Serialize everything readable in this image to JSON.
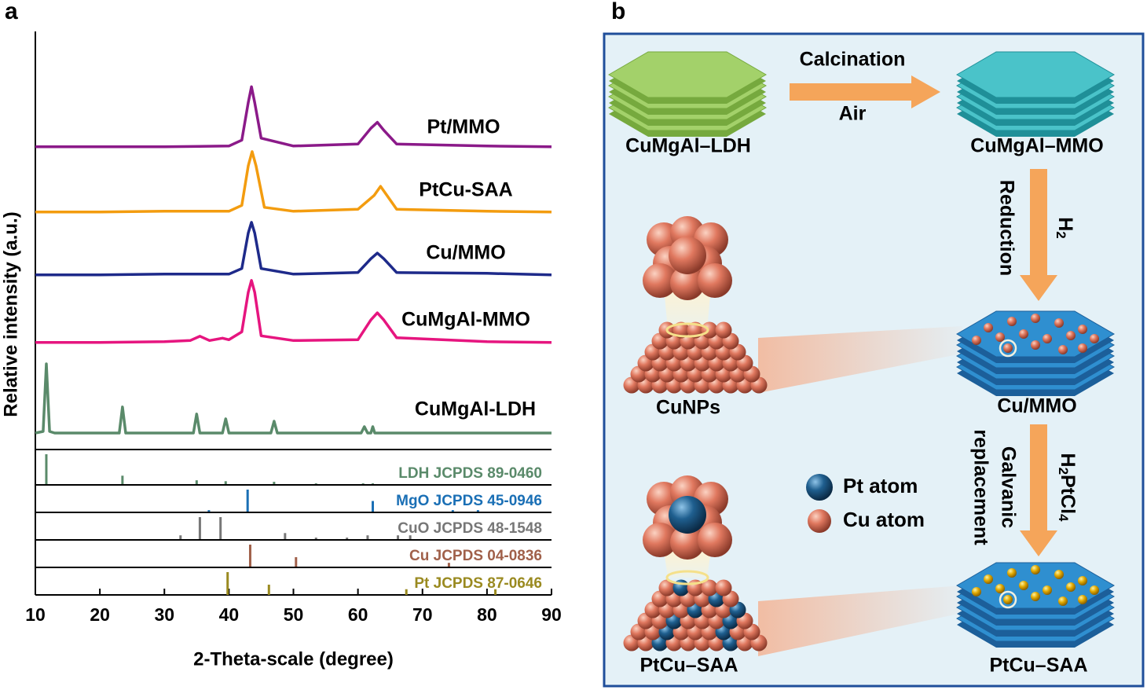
{
  "panel_labels": [
    "a",
    "b"
  ],
  "chart_data": {
    "type": "line",
    "xlabel": "2-Theta-scale (degree)",
    "ylabel": "Relative intensity (a.u.)",
    "xlim": [
      10,
      90
    ],
    "xticks": [
      10,
      20,
      30,
      40,
      50,
      60,
      70,
      80,
      90
    ],
    "ylim": [
      0,
      100
    ],
    "series": [
      {
        "name": "Pt/MMO",
        "color": "#8b1a89",
        "x": [
          10,
          20,
          30,
          40,
          42,
          43,
          43.5,
          44,
          45,
          50,
          60,
          62,
          63,
          64,
          66,
          80,
          90
        ],
        "values": [
          72.8,
          72.8,
          72.8,
          73,
          74.5,
          84,
          88,
          84,
          75,
          73,
          73.5,
          77.5,
          79,
          77,
          73.5,
          73,
          72.8
        ]
      },
      {
        "name": "PtCu-SAA",
        "color": "#f39c0f",
        "x": [
          10,
          20,
          30,
          40,
          42,
          43,
          43.6,
          44.2,
          45.5,
          50,
          60,
          62.5,
          63.5,
          64.5,
          66,
          80,
          90
        ],
        "values": [
          56.3,
          56.3,
          56.5,
          56.5,
          58,
          68,
          71.6,
          68,
          57.5,
          56.5,
          57,
          60.5,
          62.8,
          60.5,
          57,
          56.5,
          56.3
        ]
      },
      {
        "name": "Cu/MMO",
        "color": "#1e2a8a",
        "x": [
          10,
          20,
          30,
          40,
          42,
          43,
          43.5,
          44,
          45,
          50,
          60,
          62,
          63,
          64,
          66,
          80,
          90
        ],
        "values": [
          40.4,
          40.4,
          40.6,
          40.6,
          42,
          51,
          53.7,
          51,
          42,
          40.6,
          41,
          44.5,
          45.9,
          44.5,
          41,
          40.8,
          40.4
        ]
      },
      {
        "name": "CuMgAl-MMO",
        "color": "#e6157f",
        "x": [
          10,
          20,
          30,
          34,
          35.5,
          37,
          39,
          40,
          42,
          43,
          43.5,
          44,
          45,
          50,
          60,
          62,
          63,
          64,
          66,
          80,
          90
        ],
        "values": [
          23.3,
          23.3,
          23.5,
          23.8,
          24.9,
          23.8,
          24.4,
          24,
          26,
          36,
          39,
          36,
          25,
          23.8,
          24,
          29,
          30.8,
          29,
          24.5,
          23.5,
          23.3
        ]
      },
      {
        "name": "CuMgAl-LDH",
        "color": "#5a8a6a",
        "x": [
          10,
          11.2,
          11.7,
          12.2,
          13,
          23,
          23.5,
          24,
          34.5,
          35,
          35.5,
          39,
          39.5,
          40,
          46.5,
          47,
          47.5,
          60.5,
          61,
          61.5,
          62,
          62.3,
          62.6,
          90
        ],
        "values": [
          0.4,
          0.8,
          17.9,
          0.8,
          0.4,
          0.4,
          7,
          0.4,
          0.4,
          5.2,
          0.4,
          0.4,
          4,
          0.4,
          0.4,
          3.4,
          0.4,
          0.4,
          2,
          0.4,
          0.4,
          2,
          0.4,
          0.4
        ]
      }
    ],
    "references": [
      {
        "name": "LDH JCPDS 89-0460",
        "color": "#5a8a6a",
        "positions": [
          11.7,
          23.5,
          35,
          39.5,
          47,
          53.5,
          60.8,
          62.3
        ],
        "intensities": [
          100,
          30,
          15,
          12,
          10,
          5,
          5,
          5
        ]
      },
      {
        "name": "MgO JCPDS 45-0946",
        "color": "#1a6fb5",
        "positions": [
          36.9,
          42.9,
          62.3,
          74.7,
          78.6
        ],
        "intensities": [
          10,
          100,
          50,
          10,
          10
        ]
      },
      {
        "name": "CuO JCPDS 48-1548",
        "color": "#777777",
        "positions": [
          32.5,
          35.5,
          38.7,
          48.7,
          53.5,
          58.3,
          61.5,
          66.2,
          68.1
        ],
        "intensities": [
          20,
          100,
          100,
          30,
          10,
          10,
          20,
          20,
          20
        ]
      },
      {
        "name": "Cu JCPDS 04-0836",
        "color": "#a0604a",
        "positions": [
          43.3,
          50.4,
          74.1
        ],
        "intensities": [
          100,
          45,
          20
        ]
      },
      {
        "name": "Pt JCPDS 87-0646",
        "color": "#9a8a20",
        "positions": [
          39.8,
          46.2,
          67.5,
          81.3
        ],
        "intensities": [
          100,
          45,
          25,
          25
        ]
      }
    ]
  },
  "diagram": {
    "ldh": "CuMgAl–LDH",
    "mmo": "CuMgAl–MMO",
    "calcination": "Calcination",
    "air": "Air",
    "reduction": "Reduction",
    "reduction_gas": [
      "H",
      "2"
    ],
    "cu_mmo": "Cu/MMO",
    "cunps": "CuNPs",
    "galvanic": [
      "Galvanic",
      "replacement"
    ],
    "galvanic_agent": [
      "H",
      "2",
      "PtCl",
      "4"
    ],
    "legend": [
      "Pt atom",
      "Cu atom"
    ],
    "ptcu_particle": "PtCu–SAA",
    "ptcu_sample": "PtCu–SAA"
  }
}
